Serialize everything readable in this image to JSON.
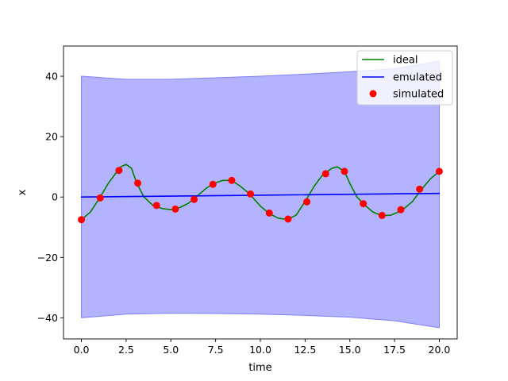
{
  "chart_data": {
    "type": "line",
    "title": "",
    "xlabel": "time",
    "ylabel": "x",
    "xlim": [
      -1,
      21
    ],
    "ylim": [
      -47,
      50
    ],
    "x_ticks": [
      0,
      2.5,
      5,
      7.5,
      10,
      12.5,
      15,
      17.5,
      20
    ],
    "x_tick_labels": [
      "0.0",
      "2.5",
      "5.0",
      "7.5",
      "10.0",
      "12.5",
      "15.0",
      "17.5",
      "20.0"
    ],
    "y_ticks": [
      -40,
      -20,
      0,
      20,
      40
    ],
    "y_tick_labels": [
      "−40",
      "−20",
      "0",
      "20",
      "40"
    ],
    "grid": false,
    "legend_position": "top-right",
    "colors": {
      "ideal": "#008000",
      "emulated": "#0000ff",
      "simulated": "#ff0000",
      "band_fill": "#b3b3ff",
      "band_edge": "#8080ff"
    },
    "series": [
      {
        "name": "ideal",
        "kind": "line",
        "x": [
          0,
          0.5,
          1.0,
          1.5,
          2.0,
          2.2,
          2.5,
          2.8,
          3.1,
          3.5,
          4.0,
          4.5,
          5.0,
          5.5,
          6.0,
          6.5,
          7.0,
          7.4,
          7.9,
          8.4,
          8.9,
          9.4,
          10.0,
          10.5,
          11.0,
          11.5,
          12.0,
          12.5,
          13.0,
          13.5,
          14.0,
          14.3,
          14.7,
          15.0,
          15.4,
          15.8,
          16.3,
          16.8,
          17.3,
          17.9,
          18.5,
          19.0,
          19.5,
          20.0
        ],
        "y": [
          -7.5,
          -5.0,
          -0.5,
          4.5,
          8.5,
          10.0,
          10.8,
          9.5,
          4.5,
          0,
          -2.8,
          -3.8,
          -4.2,
          -3.5,
          -2.0,
          0.5,
          3.0,
          4.5,
          5.5,
          5.5,
          3.5,
          1.0,
          -3.0,
          -5.5,
          -7.0,
          -7.5,
          -6.0,
          -1.5,
          3.5,
          7.5,
          9.5,
          10.0,
          8.5,
          4.5,
          0,
          -2.5,
          -5.0,
          -6.2,
          -6.0,
          -4.5,
          -1.5,
          2.5,
          6.0,
          8.5
        ]
      },
      {
        "name": "emulated",
        "kind": "line",
        "x": [
          0,
          20
        ],
        "y": [
          0,
          1.2
        ]
      },
      {
        "name": "simulated",
        "kind": "scatter",
        "x": [
          0.0,
          1.05,
          2.1,
          3.15,
          4.2,
          5.25,
          6.3,
          7.35,
          8.4,
          9.45,
          10.5,
          11.55,
          12.6,
          13.65,
          14.7,
          15.75,
          16.8,
          17.85,
          18.9,
          20.0
        ],
        "y": [
          -7.5,
          -0.3,
          8.8,
          4.6,
          -2.8,
          -4.0,
          -0.8,
          4.2,
          5.5,
          1.0,
          -5.3,
          -7.3,
          -1.6,
          7.7,
          8.5,
          -2.2,
          -6.1,
          -4.2,
          2.6,
          8.5
        ]
      }
    ],
    "uncertainty_band": {
      "series": "emulated",
      "x": [
        0,
        2.5,
        5,
        7.5,
        10,
        12.5,
        15,
        17.5,
        20
      ],
      "upper": [
        40.0,
        39.0,
        39.0,
        39.5,
        40.0,
        40.7,
        41.5,
        42.5,
        45.0
      ],
      "lower": [
        -40.0,
        -38.8,
        -38.5,
        -38.6,
        -38.8,
        -39.2,
        -39.8,
        -41.0,
        -43.3
      ]
    }
  }
}
